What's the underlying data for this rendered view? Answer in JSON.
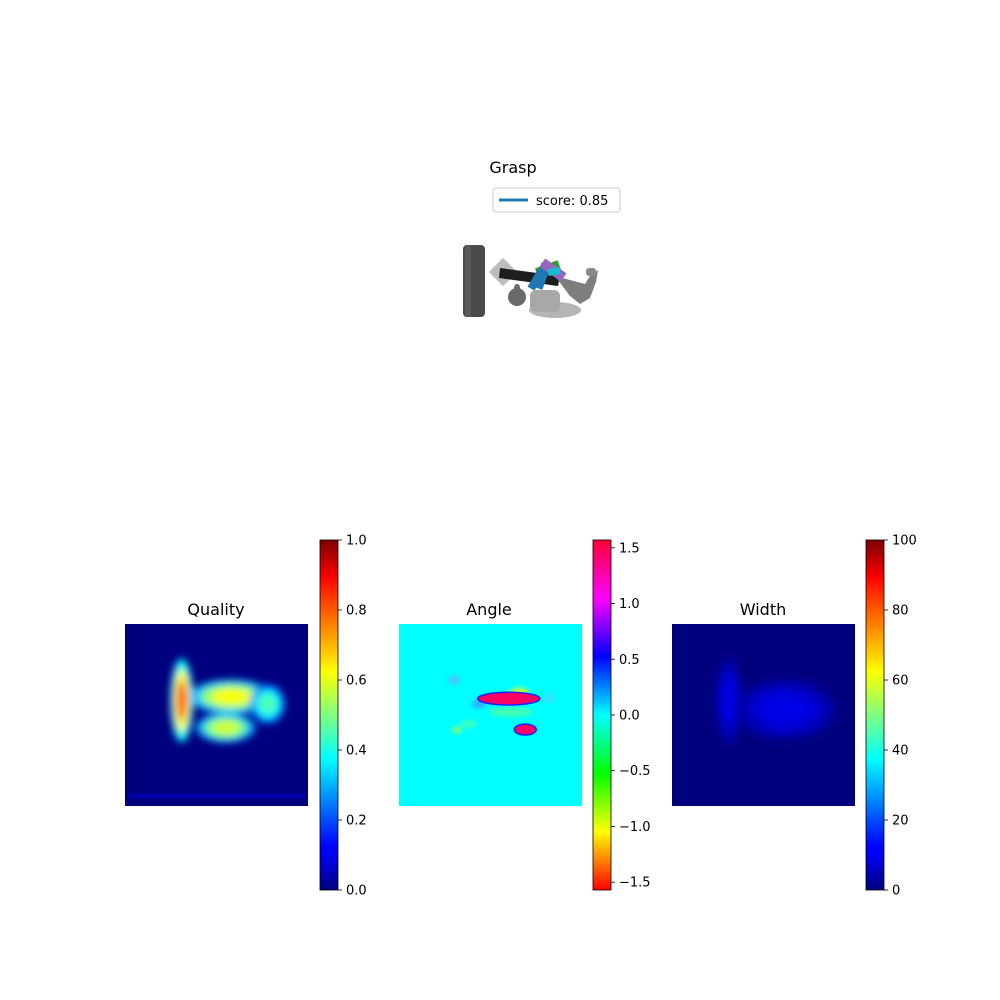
{
  "grasp_panel": {
    "title": "Grasp",
    "legend_label": "score: 0.85",
    "legend_color": "#1f77b4"
  },
  "chart_data": [
    {
      "type": "heatmap",
      "title": "Quality",
      "colormap": "jet",
      "colorbar_range": [
        0,
        1.0
      ],
      "colorbar_ticks": [
        "0.0",
        "0.2",
        "0.4",
        "0.6",
        "0.8",
        "1.0"
      ],
      "colorbar_tick_values": [
        0,
        0.2,
        0.4,
        0.6,
        0.8,
        1.0
      ],
      "blobs": [
        {
          "cx": 0.31,
          "cy": 0.42,
          "rx": 0.045,
          "ry": 0.17,
          "value": 0.78
        },
        {
          "cx": 0.58,
          "cy": 0.4,
          "rx": 0.17,
          "ry": 0.07,
          "value": 0.62
        },
        {
          "cx": 0.55,
          "cy": 0.57,
          "rx": 0.12,
          "ry": 0.06,
          "value": 0.58
        },
        {
          "cx": 0.78,
          "cy": 0.44,
          "rx": 0.07,
          "ry": 0.08,
          "value": 0.45
        }
      ],
      "background_value": 0.05,
      "legend": "colorbar-right"
    },
    {
      "type": "heatmap",
      "title": "Angle",
      "colormap": "hsv",
      "colorbar_range": [
        -1.57,
        1.57
      ],
      "colorbar_ticks": [
        "−1.5",
        "−1.0",
        "−0.5",
        "0.0",
        "0.5",
        "1.0",
        "1.5"
      ],
      "colorbar_tick_values": [
        -1.5,
        -1.0,
        -0.5,
        0.0,
        0.5,
        1.0,
        1.5
      ],
      "blobs": [
        {
          "cx": 0.6,
          "cy": 0.41,
          "rx": 0.17,
          "ry": 0.035,
          "value": 1.45
        },
        {
          "cx": 0.69,
          "cy": 0.58,
          "rx": 0.06,
          "ry": 0.03,
          "value": 1.45
        }
      ],
      "background_value": 0.0,
      "legend": "colorbar-right"
    },
    {
      "type": "heatmap",
      "title": "Width",
      "colormap": "jet",
      "colorbar_range": [
        0,
        100
      ],
      "colorbar_ticks": [
        "0",
        "20",
        "40",
        "60",
        "80",
        "100"
      ],
      "colorbar_tick_values": [
        0,
        20,
        40,
        60,
        80,
        100
      ],
      "blobs": [
        {
          "cx": 0.31,
          "cy": 0.42,
          "rx": 0.05,
          "ry": 0.17,
          "value": 10
        },
        {
          "cx": 0.62,
          "cy": 0.47,
          "rx": 0.2,
          "ry": 0.12,
          "value": 10
        }
      ],
      "background_value": 0,
      "legend": "colorbar-right"
    }
  ]
}
